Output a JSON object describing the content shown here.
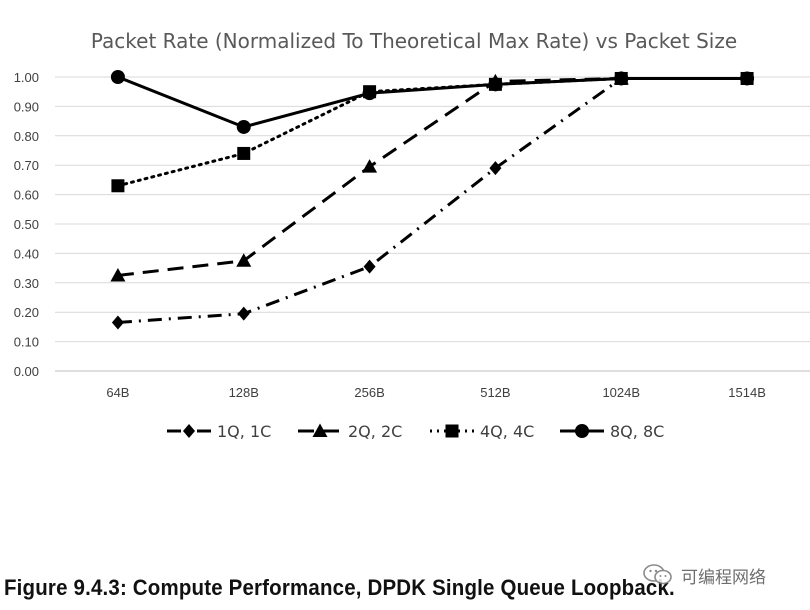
{
  "chart_data": {
    "type": "line",
    "title": "Packet Rate (Normalized To Theoretical Max Rate) vs Packet Size",
    "xlabel": "",
    "ylabel": "",
    "categories": [
      "64B",
      "128B",
      "256B",
      "512B",
      "1024B",
      "1514B"
    ],
    "ylim": [
      0,
      1.0
    ],
    "yticks": [
      "0.00",
      "0.10",
      "0.20",
      "0.30",
      "0.40",
      "0.50",
      "0.60",
      "0.70",
      "0.80",
      "0.90",
      "1.00"
    ],
    "grid": true,
    "legend_position": "bottom",
    "series": [
      {
        "name": "1Q, 1C",
        "marker": "diamond",
        "dash": "dashdot",
        "values": [
          0.165,
          0.195,
          0.355,
          0.69,
          0.995,
          null
        ]
      },
      {
        "name": "2Q, 2C",
        "marker": "triangle",
        "dash": "dashed",
        "values": [
          0.325,
          0.375,
          0.695,
          0.985,
          0.995,
          null
        ]
      },
      {
        "name": "4Q, 4C",
        "marker": "square",
        "dash": "dotted",
        "values": [
          0.63,
          0.74,
          0.95,
          0.975,
          0.995,
          0.995
        ]
      },
      {
        "name": "8Q, 8C",
        "marker": "circle",
        "dash": "solid",
        "values": [
          1.0,
          0.83,
          0.945,
          0.975,
          0.995,
          0.995
        ]
      }
    ]
  },
  "caption": "Figure 9.4.3: Compute Performance, DPDK Single Queue Loopback.",
  "watermark": "可编程网络"
}
